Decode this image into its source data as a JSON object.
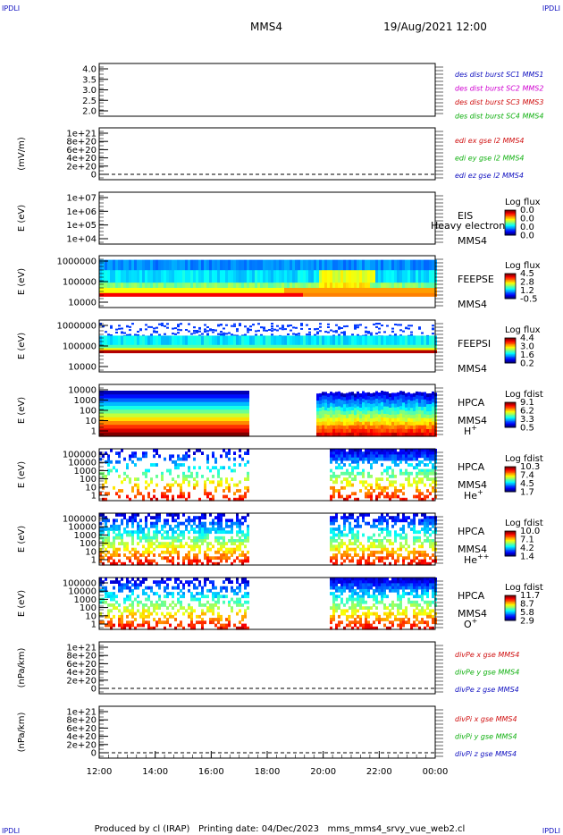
{
  "header": {
    "corner_label": "IPDLI",
    "spacecraft": "MMS4",
    "date": "19/Aug/2021 12:00"
  },
  "footer": {
    "text": "Produced by cl (IRAP)   Printing date: 04/Dec/2023   mms_mms4_srvy_vue_web2.cl"
  },
  "colors": {
    "blue": "#1010c0",
    "magenta": "#d000d0",
    "red": "#d01010",
    "green": "#10b010"
  },
  "chart_data": {
    "type": "stacked-timeseries",
    "x_ticks": [
      "12:00",
      "14:00",
      "16:00",
      "18:00",
      "20:00",
      "22:00",
      "00:00"
    ],
    "panels": [
      {
        "kind": "line",
        "ylabel": "",
        "yticks": [
          "4.0",
          "3.5",
          "3.0",
          "2.5",
          "2.0"
        ],
        "legend": [
          {
            "text": "des dist burst SC1 MMS1",
            "color": "#1010c0"
          },
          {
            "text": "des dist burst SC2 MMS2",
            "color": "#d000d0"
          },
          {
            "text": "des dist burst SC3 MMS3",
            "color": "#d01010"
          },
          {
            "text": "des dist burst SC4 MMS4",
            "color": "#10b010"
          }
        ]
      },
      {
        "kind": "line",
        "ylabel": "(mV/m)",
        "yticks": [
          "1e+21",
          "8e+20",
          "6e+20",
          "4e+20",
          "2e+20",
          "0"
        ],
        "dashed_zero": true,
        "legend": [
          {
            "text": "edi ex gse l2 MMS4",
            "color": "#d01010"
          },
          {
            "text": "edi ey gse l2 MMS4",
            "color": "#10b010"
          },
          {
            "text": "edi ez gse l2 MMS4",
            "color": "#1010c0"
          }
        ]
      },
      {
        "kind": "spectrogram",
        "pattern": "empty",
        "ylabel": "E (eV)",
        "yticks": [
          "1e+07",
          "1e+06",
          "1e+05",
          "1e+04"
        ],
        "labels": [
          "EIS",
          "MMS4"
        ],
        "overlay_text": "Heavy electron t",
        "cbar_title": "Log flux",
        "cbar_ticks": [
          "0.0",
          "0.0",
          "0.0",
          "0.0"
        ]
      },
      {
        "kind": "spectrogram",
        "pattern": "feepse",
        "ylabel": "E (eV)",
        "yticks": [
          "1000000",
          "100000",
          "10000"
        ],
        "labels": [
          "FEEPSE",
          "MMS4"
        ],
        "cbar_title": "Log flux",
        "cbar_ticks": [
          "4.5",
          "2.8",
          "1.2",
          "-0.5"
        ]
      },
      {
        "kind": "spectrogram",
        "pattern": "feepsi",
        "ylabel": "E (eV)",
        "yticks": [
          "1000000",
          "100000",
          "10000"
        ],
        "labels": [
          "FEEPSI",
          "MMS4"
        ],
        "cbar_title": "Log flux",
        "cbar_ticks": [
          "4.4",
          "3.0",
          "1.6",
          "0.2"
        ]
      },
      {
        "kind": "spectrogram",
        "pattern": "hpca_h",
        "ylabel": "E (eV)",
        "yticks": [
          "10000",
          "1000",
          "100",
          "10",
          "1"
        ],
        "labels": [
          "HPCA",
          "MMS4"
        ],
        "species": "H",
        "species_sup": "+",
        "cbar_title": "Log fdist",
        "cbar_ticks": [
          "9.1",
          "6.2",
          "3.3",
          "0.5"
        ]
      },
      {
        "kind": "spectrogram",
        "pattern": "hpca_he",
        "ylabel": "E (eV)",
        "yticks": [
          "100000",
          "10000",
          "1000",
          "100",
          "10",
          "1"
        ],
        "labels": [
          "HPCA",
          "MMS4"
        ],
        "species": "He",
        "species_sup": "+",
        "cbar_title": "Log fdist",
        "cbar_ticks": [
          "10.3",
          "7.4",
          "4.5",
          "1.7"
        ]
      },
      {
        "kind": "spectrogram",
        "pattern": "hpca_hepp",
        "ylabel": "E (eV)",
        "yticks": [
          "100000",
          "10000",
          "1000",
          "100",
          "10",
          "1"
        ],
        "labels": [
          "HPCA",
          "MMS4"
        ],
        "species": "He",
        "species_sup": "++",
        "cbar_title": "Log fdist",
        "cbar_ticks": [
          "10.0",
          "7.1",
          "4.2",
          "1.4"
        ]
      },
      {
        "kind": "spectrogram",
        "pattern": "hpca_o",
        "ylabel": "E (eV)",
        "yticks": [
          "100000",
          "10000",
          "1000",
          "100",
          "10",
          "1"
        ],
        "labels": [
          "HPCA",
          "MMS4"
        ],
        "species": "O",
        "species_sup": "+",
        "cbar_title": "Log fdist",
        "cbar_ticks": [
          "11.7",
          "8.7",
          "5.8",
          "2.9"
        ]
      },
      {
        "kind": "line",
        "ylabel": "(nPa/km)",
        "yticks": [
          "1e+21",
          "8e+20",
          "6e+20",
          "4e+20",
          "2e+20",
          "0"
        ],
        "dashed_zero": true,
        "legend": [
          {
            "text": "divPe x gse MMS4",
            "color": "#d01010"
          },
          {
            "text": "divPe y gse MMS4",
            "color": "#10b010"
          },
          {
            "text": "divPe z gse MMS4",
            "color": "#1010c0"
          }
        ]
      },
      {
        "kind": "line",
        "ylabel": "(nPa/km)",
        "yticks": [
          "1e+21",
          "8e+20",
          "6e+20",
          "4e+20",
          "2e+20",
          "0"
        ],
        "dashed_zero": true,
        "legend": [
          {
            "text": "divPi x gse MMS4",
            "color": "#d01010"
          },
          {
            "text": "divPi y gse MMS4",
            "color": "#10b010"
          },
          {
            "text": "divPi z gse MMS4",
            "color": "#1010c0"
          }
        ]
      }
    ]
  }
}
